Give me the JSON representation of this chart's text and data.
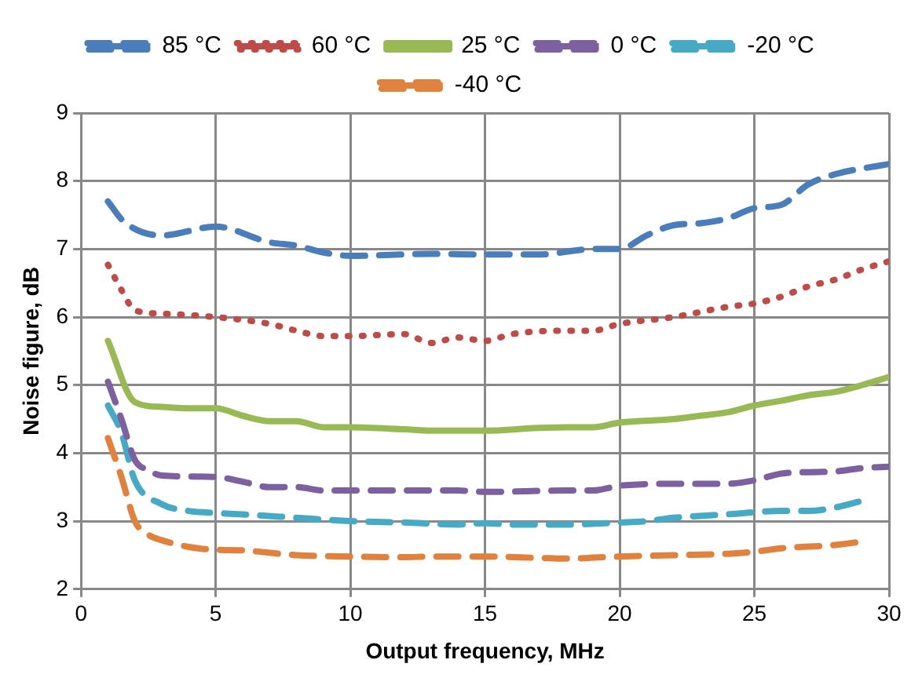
{
  "chart_data": {
    "type": "line",
    "xlabel": "Output frequency, MHz",
    "ylabel": "Noise figure, dB",
    "xlim": [
      0,
      30
    ],
    "xticks": [
      0,
      5,
      10,
      15,
      20,
      25,
      30
    ],
    "ylim": [
      2,
      9
    ],
    "yticks": [
      2,
      3,
      4,
      5,
      6,
      7,
      8,
      9
    ],
    "grid": true,
    "legend": "top",
    "marker": "none",
    "series": [
      {
        "name": "85 °C",
        "color": "#4a7ebb",
        "line_style": "dashed",
        "x": [
          1,
          1.6,
          3,
          5,
          7,
          8,
          9,
          10,
          13,
          15,
          17,
          19,
          20,
          21,
          22,
          23,
          24,
          25,
          26,
          27,
          28,
          30
        ],
        "values": [
          7.7,
          7.4,
          7.2,
          7.33,
          7.1,
          7.05,
          6.95,
          6.9,
          6.93,
          6.92,
          6.92,
          7.0,
          7.0,
          7.2,
          7.35,
          7.38,
          7.45,
          7.6,
          7.65,
          7.95,
          8.1,
          8.25
        ]
      },
      {
        "name": "60 °C",
        "color": "#be4b48",
        "line_style": "dotted",
        "x": [
          1,
          1.5,
          2,
          3,
          5,
          7,
          8,
          9,
          10,
          12,
          13,
          14,
          15,
          16,
          18,
          19,
          20,
          22,
          24,
          25,
          26,
          27,
          28,
          29,
          30
        ],
        "values": [
          6.77,
          6.4,
          6.1,
          6.05,
          6.0,
          5.9,
          5.8,
          5.72,
          5.72,
          5.75,
          5.62,
          5.7,
          5.65,
          5.75,
          5.8,
          5.8,
          5.9,
          6.0,
          6.15,
          6.2,
          6.3,
          6.45,
          6.55,
          6.7,
          6.82
        ]
      },
      {
        "name": "25 °C",
        "color": "#98b954",
        "line_style": "solid",
        "x": [
          1,
          2,
          3,
          4,
          5,
          6,
          7,
          8,
          9,
          10,
          12,
          13,
          15,
          17,
          18,
          19,
          20,
          22,
          23,
          24,
          25,
          26,
          27,
          28,
          29,
          30
        ],
        "values": [
          5.65,
          4.75,
          4.68,
          4.66,
          4.66,
          4.55,
          4.47,
          4.47,
          4.38,
          4.38,
          4.35,
          4.33,
          4.33,
          4.37,
          4.38,
          4.38,
          4.45,
          4.5,
          4.55,
          4.6,
          4.7,
          4.77,
          4.85,
          4.9,
          5.0,
          5.12
        ]
      },
      {
        "name": "0 °C",
        "color": "#7d60a0",
        "line_style": "dashed",
        "x": [
          1,
          1.5,
          2,
          2.5,
          3,
          5,
          6,
          7,
          8,
          9,
          10,
          12,
          14,
          15,
          18,
          19,
          20,
          22,
          24,
          25,
          26,
          27,
          28,
          29,
          30
        ],
        "values": [
          5.05,
          4.5,
          3.9,
          3.75,
          3.67,
          3.65,
          3.58,
          3.5,
          3.5,
          3.45,
          3.45,
          3.45,
          3.45,
          3.43,
          3.45,
          3.45,
          3.52,
          3.55,
          3.55,
          3.6,
          3.7,
          3.72,
          3.73,
          3.78,
          3.8
        ]
      },
      {
        "name": "-20 °C",
        "color": "#46aac5",
        "line_style": "dashed",
        "x": [
          1,
          1.5,
          2,
          3,
          4,
          5,
          6,
          8,
          10,
          12,
          14,
          15,
          16,
          18,
          20,
          21,
          22,
          24,
          26,
          27,
          28,
          29
        ],
        "values": [
          4.7,
          4.3,
          3.6,
          3.25,
          3.15,
          3.12,
          3.1,
          3.05,
          3.0,
          2.98,
          2.95,
          2.97,
          2.95,
          2.95,
          2.98,
          3.0,
          3.05,
          3.1,
          3.15,
          3.15,
          3.2,
          3.3
        ]
      },
      {
        "name": "-40 °C",
        "color": "#e0823d",
        "line_style": "dashed",
        "x": [
          1,
          1.5,
          2,
          2.5,
          3,
          4,
          5,
          6,
          8,
          10,
          12,
          13,
          15,
          17,
          18,
          20,
          22,
          24,
          25,
          26,
          28,
          29
        ],
        "values": [
          4.22,
          3.65,
          3.0,
          2.8,
          2.72,
          2.62,
          2.58,
          2.57,
          2.5,
          2.48,
          2.47,
          2.48,
          2.48,
          2.46,
          2.45,
          2.48,
          2.5,
          2.52,
          2.55,
          2.6,
          2.65,
          2.7
        ]
      }
    ]
  }
}
